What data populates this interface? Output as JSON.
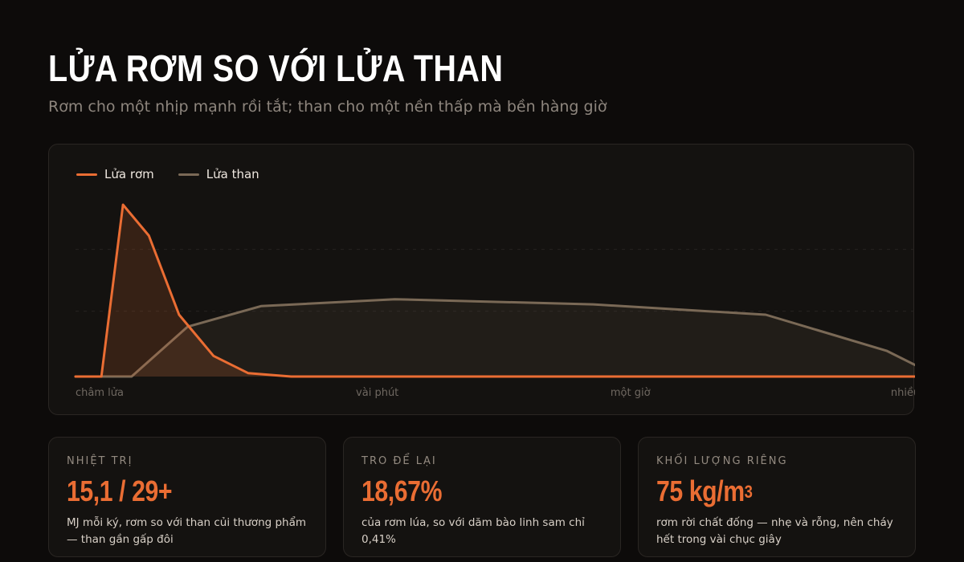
{
  "header": {
    "title": "LỬA RƠM SO VỚI LỬA THAN",
    "subtitle": "Rơm cho một nhịp mạnh rồi tắt; than cho một nền thấp mà bền hàng giờ"
  },
  "chart_data": {
    "type": "area",
    "x_ticks": [
      "châm lửa",
      "vài phút",
      "một giờ",
      "nhiều giờ"
    ],
    "ylim": [
      0,
      1
    ],
    "legend_position": "top-left",
    "series": [
      {
        "name": "Lửa rơm",
        "color": "#ea6d33",
        "points": [
          [
            0,
            0
          ],
          [
            0.03,
            0
          ],
          [
            0.055,
            1.0
          ],
          [
            0.085,
            0.82
          ],
          [
            0.12,
            0.36
          ],
          [
            0.16,
            0.12
          ],
          [
            0.2,
            0.02
          ],
          [
            0.25,
            0
          ],
          [
            0.5,
            0
          ],
          [
            0.75,
            0
          ],
          [
            1,
            0
          ]
        ]
      },
      {
        "name": "Lửa than",
        "color": "#7a6956",
        "points": [
          [
            0,
            0
          ],
          [
            0.065,
            0
          ],
          [
            0.13,
            0.29
          ],
          [
            0.215,
            0.41
          ],
          [
            0.37,
            0.45
          ],
          [
            0.6,
            0.42
          ],
          [
            0.8,
            0.36
          ],
          [
            0.94,
            0.15
          ],
          [
            1,
            0
          ]
        ]
      }
    ]
  },
  "stats": [
    {
      "label": "NHIỆT TRỊ",
      "value": "15,1 / 29+",
      "value_sup": "",
      "desc": "MJ mỗi ký, rơm so với than củi thương phẩm — than gần gấp đôi"
    },
    {
      "label": "TRO ĐỂ LẠI",
      "value": "18,67%",
      "value_sup": "",
      "desc": "của rơm lúa, so với dăm bào linh sam chỉ 0,41%"
    },
    {
      "label": "KHỐI LƯỢNG RIÊNG",
      "value": "75 kg/m",
      "value_sup": "3",
      "desc": "rơm rời chất đống — nhẹ và rỗng, nên cháy hết trong vài chục giây"
    }
  ]
}
